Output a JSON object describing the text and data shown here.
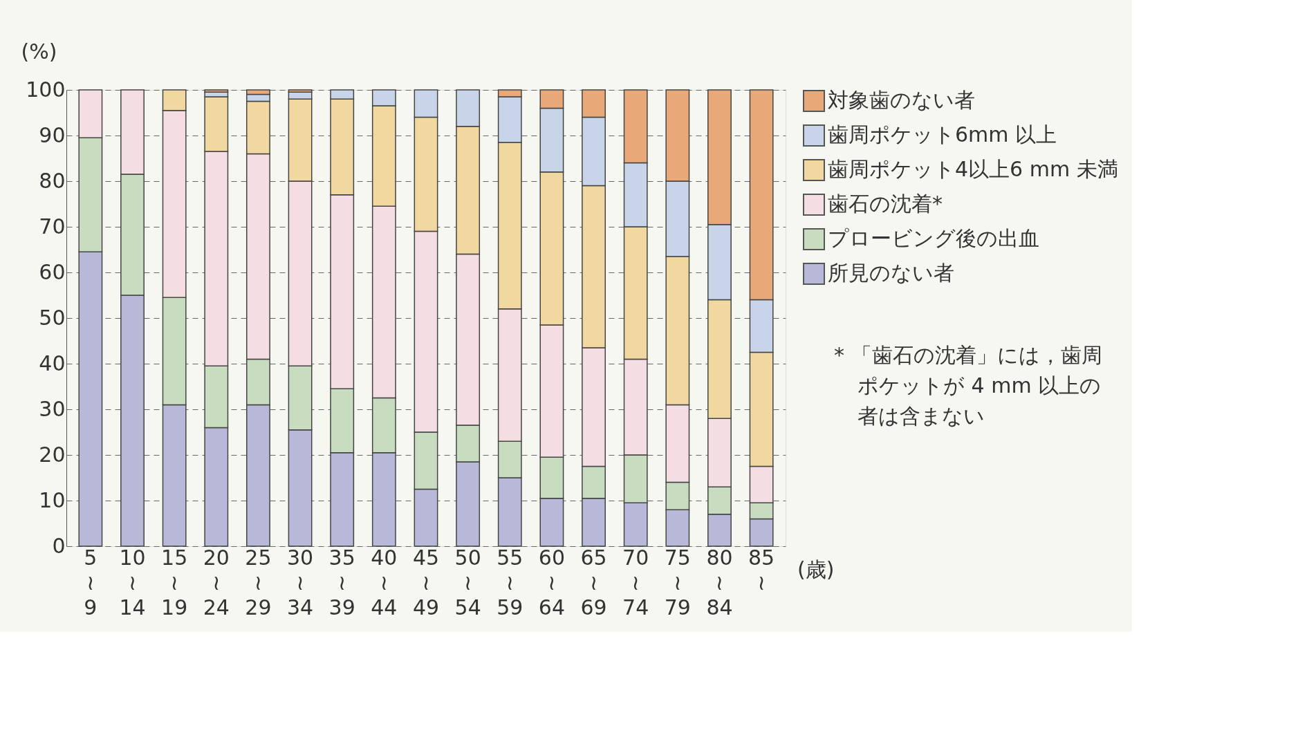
{
  "chart_data": {
    "type": "bar",
    "stacked": true,
    "categories": [
      "5\n≀\n9",
      "10\n≀\n14",
      "15\n≀\n19",
      "20\n≀\n24",
      "25\n≀\n29",
      "30\n≀\n34",
      "35\n≀\n39",
      "40\n≀\n44",
      "45\n≀\n49",
      "50\n≀\n54",
      "55\n≀\n59",
      "60\n≀\n64",
      "65\n≀\n69",
      "70\n≀\n74",
      "75\n≀\n79",
      "80\n≀\n84",
      "85\n≀"
    ],
    "xlabel": "(歳)",
    "ylabel": "(%)",
    "series": [
      {
        "name": "所見のない者",
        "color": "#b8b8d8",
        "values": [
          64.5,
          55,
          31,
          26,
          31,
          25.5,
          20.5,
          20.5,
          12.5,
          18.5,
          15,
          10.5,
          10.5,
          9.5,
          8,
          7,
          6
        ]
      },
      {
        "name": "プロービング後の出血",
        "color": "#c8dcc0",
        "values": [
          25,
          26.5,
          23.5,
          13.5,
          10,
          14,
          14,
          12,
          12.5,
          8,
          8,
          9,
          7,
          10.5,
          6,
          6,
          3.5
        ]
      },
      {
        "name": "歯石の沈着*",
        "color": "#f4dde3",
        "values": [
          10.5,
          18.5,
          41,
          47,
          45,
          40.5,
          42.5,
          42,
          44,
          37.5,
          29,
          29,
          26,
          21,
          17,
          15,
          8
        ]
      },
      {
        "name": "歯周ポケット4以上6 mm 未満",
        "color": "#f0d8a0",
        "values": [
          null,
          null,
          4.5,
          12,
          11.5,
          18,
          21,
          22,
          25,
          28,
          36.5,
          33.5,
          35.5,
          29,
          32.5,
          26,
          25
        ]
      },
      {
        "name": "歯周ポケット6mm 以上",
        "color": "#c8d4e8",
        "values": [
          null,
          null,
          null,
          1,
          1.5,
          1.5,
          2,
          3.5,
          6,
          8,
          10,
          14,
          15,
          14,
          16.5,
          16.5,
          11.5
        ]
      },
      {
        "name": "対象歯のない者",
        "color": "#e8a878",
        "values": [
          null,
          null,
          null,
          0.5,
          1,
          0.5,
          null,
          null,
          null,
          null,
          1.5,
          4,
          6,
          16,
          20,
          29.5,
          46
        ]
      }
    ],
    "ylim": [
      0,
      100
    ],
    "yticks": [
      0,
      10,
      20,
      30,
      40,
      50,
      60,
      70,
      80,
      90,
      100
    ],
    "grid": "y",
    "legend": "top right",
    "annotations": [
      "* 「歯石の沈着」には，歯周",
      "ポケットが 4 mm 以上の",
      "者は含まない"
    ]
  }
}
